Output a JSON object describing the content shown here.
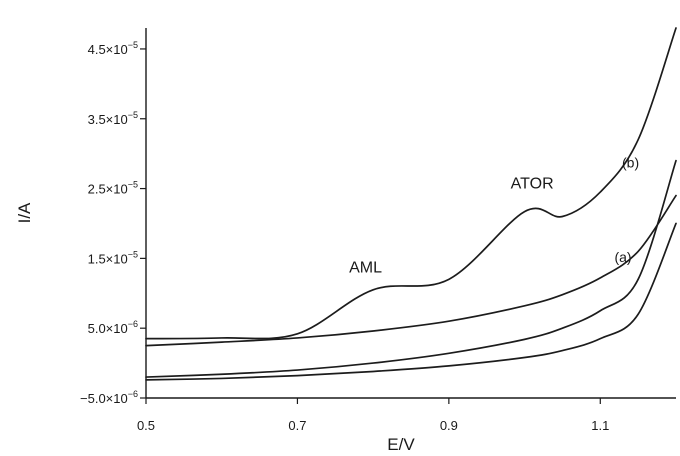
{
  "chart_data": {
    "type": "line",
    "xlabel": "E/V",
    "ylabel": "I/A",
    "xlim": [
      0.5,
      1.2
    ],
    "ylim": [
      -5e-06,
      4.8e-05
    ],
    "x_ticks": [
      {
        "value": 0.5,
        "label": "0.5"
      },
      {
        "value": 0.7,
        "label": "0.7"
      },
      {
        "value": 0.9,
        "label": "0.9"
      },
      {
        "value": 1.1,
        "label": "1.1"
      }
    ],
    "y_ticks": [
      {
        "value": -5e-06,
        "mant": "−5.0×10",
        "exp": "−6"
      },
      {
        "value": 5e-06,
        "mant": "5.0×10",
        "exp": "−6"
      },
      {
        "value": 1.5e-05,
        "mant": "1.5×10",
        "exp": "−5"
      },
      {
        "value": 2.5e-05,
        "mant": "2.5×10",
        "exp": "−5"
      },
      {
        "value": 3.5e-05,
        "mant": "3.5×10",
        "exp": "−5"
      },
      {
        "value": 4.5e-05,
        "mant": "4.5×10",
        "exp": "−5"
      }
    ],
    "series": [
      {
        "x": [
          0.5,
          0.6,
          0.7,
          0.8,
          0.9,
          1.0,
          1.05,
          1.1,
          1.15,
          1.2
        ],
        "y": [
          2.5e-06,
          3e-06,
          3.6e-06,
          4.6e-06,
          6e-06,
          8.2e-06,
          9.8e-06,
          1.22e-05,
          1.6e-05,
          2.4e-05
        ]
      },
      {
        "x": [
          0.5,
          0.6,
          0.7,
          0.8,
          0.9,
          1.0,
          1.05,
          1.1,
          1.15,
          1.2
        ],
        "y": [
          -2e-06,
          -1.6e-06,
          -1e-06,
          0.0,
          1.4e-06,
          3.4e-06,
          5e-06,
          7.5e-06,
          1.2e-05,
          2.9e-05
        ]
      },
      {
        "x": [
          0.5,
          0.6,
          0.7,
          0.8,
          0.9,
          1.0,
          1.05,
          1.1,
          1.15,
          1.2
        ],
        "y": [
          3.5e-06,
          3.6e-06,
          4.2e-06,
          1.05e-05,
          1.2e-05,
          2.17e-05,
          2.1e-05,
          2.45e-05,
          3.2e-05,
          4.8e-05
        ]
      },
      {
        "x": [
          0.5,
          0.6,
          0.7,
          0.8,
          0.9,
          1.0,
          1.05,
          1.1,
          1.15,
          1.2
        ],
        "y": [
          -2.4e-06,
          -2.2e-06,
          -1.8e-06,
          -1.2e-06,
          -4e-07,
          8e-07,
          1.8e-06,
          3.5e-06,
          7e-06,
          2e-05
        ]
      }
    ],
    "annotations": [
      {
        "text": "AML",
        "x": 0.79,
        "y": 1.3e-05
      },
      {
        "text": "ATOR",
        "x": 1.01,
        "y": 2.5e-05
      },
      {
        "text": "(b)",
        "x": 1.14,
        "y": 2.8e-05
      },
      {
        "text": "(a)",
        "x": 1.13,
        "y": 1.45e-05
      }
    ]
  }
}
